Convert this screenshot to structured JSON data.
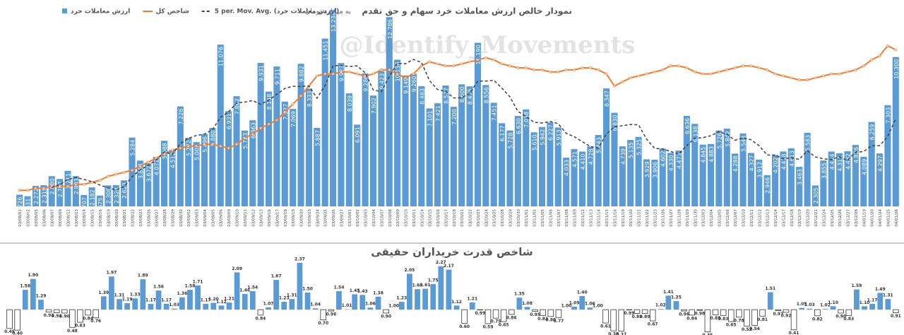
{
  "chart_data": [
    {
      "type": "bar",
      "title": "نمودار خالص ارزش معاملات خرد سهام و حق تقدم",
      "subtitle": "به میلیارد تومان",
      "annotation": "@Identify_Movements",
      "categories": [
        "03/08/01",
        "03/08/02",
        "03/08/05",
        "03/08/06",
        "03/08/07",
        "03/08/09",
        "03/08/12",
        "03/08/13",
        "03/08/14",
        "03/08/15",
        "03/08/16",
        "03/08/19",
        "03/08/20",
        "03/08/21",
        "03/08/22",
        "03/08/23",
        "03/08/26",
        "03/08/27",
        "03/08/28",
        "03/08/29",
        "03/08/30",
        "03/09/02",
        "03/09/03",
        "03/09/04",
        "03/09/05",
        "03/09/06",
        "03/09/09",
        "03/09/10",
        "03/09/11",
        "03/09/12",
        "03/09/13",
        "03/09/16",
        "03/09/17",
        "03/09/18",
        "03/09/19",
        "03/09/20",
        "03/09/23",
        "03/09/24",
        "03/09/25",
        "03/09/26",
        "03/09/27",
        "03/10/01",
        "03/10/02",
        "03/10/03",
        "03/10/04",
        "03/10/07",
        "03/10/08",
        "03/10/09",
        "03/10/10",
        "03/10/11",
        "03/10/14",
        "03/10/15",
        "03/10/16",
        "03/10/17",
        "03/10/18",
        "03/10/21",
        "03/10/22",
        "03/10/23",
        "03/10/24",
        "03/10/25",
        "03/10/28",
        "03/10/29",
        "03/10/30",
        "03/11/01",
        "03/11/02",
        "03/11/05",
        "03/11/06",
        "03/11/07",
        "03/11/08",
        "03/11/09",
        "03/11/12",
        "03/11/13",
        "03/11/14",
        "03/11/15",
        "03/11/16",
        "03/11/19",
        "03/11/20",
        "03/11/21",
        "03/11/22",
        "03/11/23",
        "03/11/26",
        "03/11/27",
        "03/11/28",
        "03/11/29",
        "03/11/30",
        "03/12/03",
        "03/12/04",
        "03/12/05",
        "03/12/06",
        "03/12/07",
        "03/12/10",
        "03/12/11",
        "03/12/12",
        "03/12/13",
        "03/12/14",
        "03/12/17",
        "03/12/18",
        "03/12/19",
        "03/12/20",
        "03/12/21",
        "03/12/24",
        "03/12/25",
        "03/12/26",
        "03/12/27",
        "03/12/28",
        "04/01/19",
        "04/01/20",
        "04/01/24",
        "04/01/25",
        "04/01/26"
      ],
      "series": [
        {
          "name": "ارزش معاملات خرد",
          "type": "bar",
          "color": "#5b9bd5",
          "values": [
            1.726,
            1.631,
            2.272,
            2.319,
            2.88,
            2.707,
            3.211,
            2.883,
            1.707,
            2.182,
            1.675,
            2.308,
            2.324,
            2.623,
            5.284,
            3.851,
            3.672,
            4.072,
            5.088,
            4.512,
            7.226,
            5.272,
            5.002,
            5.496,
            5.88,
            11.076,
            6.931,
            7.862,
            5.723,
            6.363,
            9.931,
            8.148,
            9.711,
            7.527,
            7.069,
            9.882,
            8.333,
            5.887,
            11.451,
            13.234,
            9.923,
            8.039,
            6.091,
            9.286,
            7.902,
            9.423,
            12.786,
            10.136,
            9.149,
            9.26,
            8.483,
            7.101,
            7.421,
            8.527,
            7.2,
            8.6,
            8.475,
            11.19,
            8.556,
            7.451,
            6.177,
            5.728,
            6.63,
            7.038,
            5.61,
            5.942,
            6.227,
            5.913,
            4.033,
            4.571,
            4.41,
            4.728,
            5.443,
            8.347,
            6.83,
            4.739,
            5.135,
            5.325,
            3.929,
            3.906,
            4.602,
            4.33,
            4.473,
            6.636,
            6.138,
            4.845,
            4.883,
            5.726,
            5.842,
            4.288,
            5.543,
            4.327,
            3.912,
            2.946,
            4.202,
            4.418,
            4.613,
            3.463,
            5.583,
            2.305,
            3.855,
            4.414,
            4.311,
            4.432,
            4.826,
            4.089,
            6.259,
            4.297,
            7.303,
            10.3
          ],
          "value_labels": [
            "1.726",
            "1.631",
            "2.272",
            "2.319",
            "2.880",
            "2.707",
            "3.211",
            "2.883",
            "1.707",
            "2.182",
            "1.675",
            "2.308",
            "2.324",
            "2.623",
            "5.284",
            "3.851",
            "3.672",
            "4.072",
            "5.088",
            "4.512",
            "7.226",
            "5.272",
            "5.002",
            "5.496",
            "5.880",
            "11.076",
            "6.931",
            "7.862",
            "5.723",
            "6.363",
            "9.931",
            "8.148",
            "9.711",
            "7.527",
            "7.069",
            "9.882",
            "8.333",
            "5.887",
            "11.451",
            "13.234",
            "9.923",
            "8.039",
            "6.091",
            "9.286",
            "7.902",
            "9.423",
            "12.786",
            "10.136",
            "9.149",
            "9.260",
            "8.483",
            "7.101",
            "7.421",
            "8.527",
            "7.200",
            "8.600",
            "8.475",
            "11.190",
            "8.556",
            "7.451",
            "6.177",
            "5.728",
            "6.630",
            "7.038",
            "5.610",
            "5.942",
            "6.227",
            "5.913",
            "4.033",
            "4.571",
            "4.410",
            "4.728",
            "5.443",
            "8.347",
            "6.830",
            "4.739",
            "5.135",
            "5.325",
            "3.929",
            "3.906",
            "4.602",
            "4.330",
            "4.473",
            "6.636",
            "6.138",
            "4.845",
            "4.883",
            "5.726",
            "5.842",
            "4.288",
            "5.543",
            "4.327",
            "3.912",
            "2.946",
            "4.202",
            "4.418",
            "4.613",
            "3.463",
            "5.583",
            "2.305",
            "3.855",
            "4.414",
            "4.311",
            "4.432",
            "4.826",
            "4.089",
            "6.259",
            "4.297",
            "7.303",
            "10.300"
          ]
        },
        {
          "name": "شاخص کل",
          "type": "line",
          "axis": "y2",
          "color": "#ed7d31",
          "values": [
            8,
            8,
            9,
            9,
            10,
            10,
            10,
            11,
            11,
            12,
            13,
            15,
            16,
            17,
            18,
            20,
            22,
            24,
            26,
            28,
            29,
            30,
            30,
            31,
            31,
            30,
            29,
            31,
            34,
            36,
            39,
            41,
            43,
            47,
            51,
            55,
            60,
            65,
            66,
            66,
            67,
            67,
            66,
            65,
            66,
            68,
            68,
            66,
            64,
            66,
            70,
            72,
            71,
            70,
            70,
            71,
            72,
            73,
            74,
            73,
            71,
            70,
            69,
            69,
            68,
            68,
            67,
            67,
            68,
            68,
            69,
            69,
            68,
            66,
            60,
            62,
            64,
            65,
            66,
            67,
            68,
            70,
            70,
            69,
            67,
            66,
            66,
            67,
            68,
            69,
            70,
            70,
            69,
            68,
            66,
            65,
            64,
            63,
            63,
            64,
            65,
            66,
            66,
            67,
            68,
            70,
            73,
            75,
            80,
            78
          ]
        },
        {
          "name": "5 per. Mov. Avg. (ارزش معاملات خرد)",
          "type": "line",
          "dashed": true,
          "color": "#404040",
          "values": [
            null,
            null,
            null,
            null,
            2.17,
            2.36,
            2.68,
            2.8,
            2.68,
            2.54,
            2.33,
            2.15,
            2.04,
            2.22,
            2.84,
            3.28,
            3.55,
            3.9,
            4.39,
            4.24,
            4.91,
            5.23,
            5.42,
            5.5,
            5.78,
            6.55,
            6.88,
            7.45,
            7.49,
            7.59,
            7.36,
            7.61,
            7.98,
            8.34,
            8.48,
            8.47,
            8.5,
            7.74,
            8.52,
            9.76,
            9.77,
            9.71,
            9.75,
            9.31,
            8.25,
            8.15,
            9.1,
            9.91,
            9.88,
            10.15,
            9.96,
            8.83,
            8.28,
            8.16,
            7.75,
            7.77,
            8.04,
            8.8,
            8.8,
            8.85,
            8.37,
            7.82,
            6.91,
            6.6,
            6.24,
            6.19,
            6.29,
            6.15,
            5.55,
            5.34,
            5.03,
            4.73,
            4.64,
            5.5,
            5.95,
            6.02,
            6.1,
            6.08,
            5.19,
            4.61,
            4.58,
            4.42,
            4.25,
            4.79,
            5.24,
            5.28,
            5.4,
            5.65,
            5.49,
            5.12,
            5.26,
            5.15,
            4.78,
            4.2,
            4.19,
            3.96,
            4.02,
            3.93,
            4.46,
            4.08,
            3.96,
            3.92,
            4.09,
            3.86,
            4.37,
            4.41,
            4.78,
            4.78,
            5.35,
            6.45
          ]
        }
      ],
      "ylim": [
        1,
        13.5
      ],
      "y2lim": [
        0,
        100
      ]
    },
    {
      "type": "bar",
      "title": "شاخص قدرت خریداران حقیقی",
      "baseline": 1,
      "color": "#5b9bd5",
      "below_color": "#ffffff",
      "ylim": [
        0.3,
        2.45
      ],
      "values": [
        0.45,
        0.4,
        1.58,
        1.9,
        1.29,
        0.93,
        0.91,
        0.9,
        0.48,
        0.63,
        0.84,
        0.76,
        1.39,
        1.97,
        1.31,
        1.19,
        1.33,
        1.89,
        1.17,
        1.56,
        1.17,
        1.03,
        1.36,
        1.58,
        1.71,
        1.17,
        1.2,
        1.12,
        1.21,
        2.09,
        1.46,
        1.54,
        0.84,
        1.07,
        1.87,
        1.23,
        1.31,
        2.37,
        1.5,
        1.04,
        0.7,
        0.96,
        1.54,
        1.01,
        1.45,
        1.43,
        1.06,
        1.38,
        0.9,
        1.0,
        1.23,
        2.05,
        1.6,
        1.61,
        1.75,
        2.27,
        2.17,
        1.12,
        0.6,
        1.21,
        0.99,
        0.59,
        0.75,
        0.65,
        0.86,
        1.35,
        1.08,
        0.95,
        0.83,
        0.8,
        0.77,
        1.0,
        1.09,
        1.4,
        1.06,
        1.0,
        0.61,
        0.38,
        0.37,
        0.99,
        0.89,
        0.89,
        0.67,
        1.02,
        1.41,
        1.25,
        0.96,
        0.84,
        0.98,
        0.35,
        0.85,
        0.83,
        0.65,
        0.78,
        0.52,
        0.54,
        0.81,
        1.51,
        0.97,
        0.92,
        0.41,
        1.05,
        1.03,
        0.82,
        1.02,
        1.1,
        0.9,
        0.83,
        1.59,
        1.1,
        1.17,
        1.49,
        1.31,
        0.91
      ],
      "value_labels": [
        "0.45",
        "0.40",
        "1.58",
        "1.90",
        "1.29",
        "0.93",
        "0.91",
        "0.90",
        "0.48",
        "0.63",
        "0.84",
        "0.76",
        "1.39",
        "1.97",
        "1.31",
        "1.19",
        "1.33",
        "1.89",
        "1.17",
        "1.56",
        "1.17",
        "1.03",
        "1.36",
        "1.58",
        "1.71",
        "1.17",
        "1.20",
        "1.12",
        "1.21",
        "2.09",
        "1.46",
        "1.54",
        "0.84",
        "1.07",
        "1.87",
        "1.23",
        "1.31",
        "2.37",
        "1.50",
        "1.04",
        "0.70",
        "0.96",
        "1.54",
        "1.01",
        "1.45",
        "1.43",
        "1.06",
        "1.38",
        "0.90",
        "1.00",
        "1.23",
        "2.05",
        "1.60",
        "1.61",
        "1.75",
        "2.27",
        "2.17",
        "1.12",
        "0.60",
        "1.21",
        "0.99",
        "0.59",
        "0.75",
        "0.65",
        "0.86",
        "1.35",
        "1.08",
        "0.95",
        "0.83",
        "0.80",
        "0.77",
        "1.00",
        "1.09",
        "1.40",
        "1.06",
        "1.00",
        "0.61",
        "0.38",
        "0.37",
        "0.99",
        "0.89",
        "0.89",
        "0.67",
        "1.02",
        "1.41",
        "1.25",
        "0.96",
        "0.84",
        "0.98",
        "0.35",
        "0.85",
        "0.83",
        "0.65",
        "0.78",
        "0.52",
        "0.54",
        "0.81",
        "1.51",
        "0.97",
        "0.92",
        "0.41",
        "1.05",
        "1.03",
        "0.82",
        "1.02",
        "1.10",
        "0.90",
        "0.83",
        "1.59",
        "1.10",
        "1.17",
        "1.49",
        "1.31",
        "0.91"
      ]
    }
  ]
}
